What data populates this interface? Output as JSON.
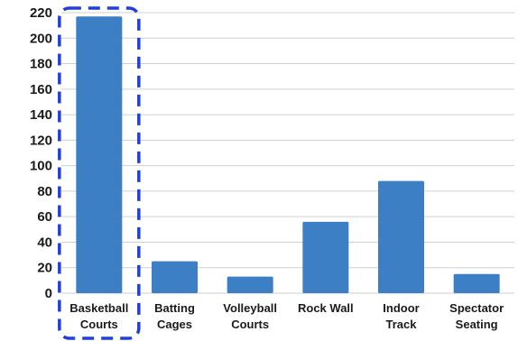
{
  "chart_data": {
    "type": "bar",
    "categories": [
      [
        "Basketball",
        "Courts"
      ],
      [
        "Batting",
        "Cages"
      ],
      [
        "Volleyball",
        "Courts"
      ],
      [
        "Rock Wall"
      ],
      [
        "Indoor",
        "Track"
      ],
      [
        "Spectator",
        "Seating"
      ]
    ],
    "values": [
      217,
      25,
      13,
      56,
      88,
      15
    ],
    "ylim": [
      0,
      220
    ],
    "y_ticks": [
      "0",
      "20",
      "40",
      "60",
      "80",
      "100",
      "120",
      "140",
      "160",
      "180",
      "200",
      "220"
    ],
    "grid": true,
    "highlight": {
      "category_index": 0,
      "style": "dashed-rounded-box"
    },
    "colors": {
      "bar": "#3d7fc4",
      "grid": "#d0d0d0",
      "highlight": "#1f3fe0"
    }
  }
}
